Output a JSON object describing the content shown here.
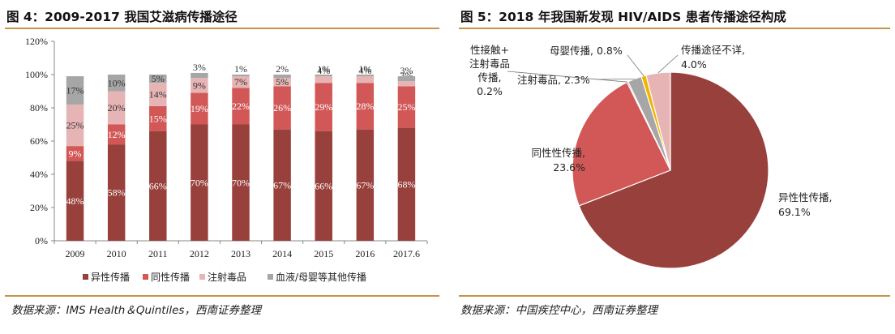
{
  "left": {
    "title": "图 4：2009-2017 我国艾滋病传播途径",
    "source": "数据来源：IMS Health＆Quintiles，西南证券整理"
  },
  "right": {
    "title": "图 5：2018 年我国新发现 HIV/AIDS 患者传播途径构成",
    "source": "数据来源：中国疾控中心，西南证券整理"
  },
  "chart_data": [
    {
      "type": "bar",
      "stacked": true,
      "categories": [
        "2009",
        "2010",
        "2011",
        "2012",
        "2013",
        "2014",
        "2015",
        "2016",
        "2017.6"
      ],
      "ylim": [
        0,
        120
      ],
      "yticks": [
        "0%",
        "20%",
        "40%",
        "60%",
        "80%",
        "100%",
        "120%"
      ],
      "legend_position": "bottom",
      "series": [
        {
          "name": "异性传播",
          "color": "#97403c",
          "values": [
            48,
            58,
            66,
            70,
            70,
            67,
            66,
            67,
            68
          ],
          "labels": [
            "48%",
            "58%",
            "66%",
            "70%",
            "70%",
            "67%",
            "66%",
            "67%",
            "68%"
          ]
        },
        {
          "name": "同性传播",
          "color": "#d25858",
          "values": [
            9,
            12,
            15,
            19,
            22,
            26,
            29,
            28,
            25
          ],
          "labels": [
            "9%",
            "12%",
            "15%",
            "19%",
            "22%",
            "26%",
            "29%",
            "28%",
            "25%"
          ]
        },
        {
          "name": "注射毒品",
          "color": "#e6b4b4",
          "values": [
            25,
            20,
            14,
            9,
            7,
            5,
            4,
            4,
            3
          ],
          "labels": [
            "25%",
            "20%",
            "14%",
            "9%",
            "7%",
            "5%",
            "4%",
            "4%",
            "3%"
          ]
        },
        {
          "name": "血液/母婴等其他传播",
          "color": "#a6a6a6",
          "values": [
            17,
            10,
            5,
            3,
            1,
            2,
            1,
            1,
            3
          ],
          "labels": [
            "17%",
            "10%",
            "5%",
            "3%",
            "1%",
            "2%",
            "1%",
            "1%",
            "3%"
          ]
        }
      ]
    },
    {
      "type": "pie",
      "slices": [
        {
          "name": "异性性传播",
          "value": 69.1,
          "color": "#97403c",
          "label_lines": [
            "异性性传播,",
            "69.1%"
          ]
        },
        {
          "name": "同性性传播",
          "value": 23.6,
          "color": "#d25858",
          "label_lines": [
            "同性性传播,",
            "23.6%"
          ]
        },
        {
          "name": "性接触+注射毒品传播",
          "value": 0.2,
          "color": "#8b1a1a",
          "label_lines": [
            "性接触+",
            "注射毒品",
            "传播,",
            "0.2%"
          ]
        },
        {
          "name": "注射毒品",
          "value": 2.3,
          "color": "#a6a6a6",
          "label_lines": [
            "注射毒品, 2.3%"
          ]
        },
        {
          "name": "母婴传播",
          "value": 0.8,
          "color": "#f0b400",
          "label_lines": [
            "母婴传播, 0.8%"
          ]
        },
        {
          "name": "传播途径不详",
          "value": 4.0,
          "color": "#e6b4b4",
          "label_lines": [
            "传播途径不详,",
            "4.0%"
          ]
        }
      ]
    }
  ]
}
